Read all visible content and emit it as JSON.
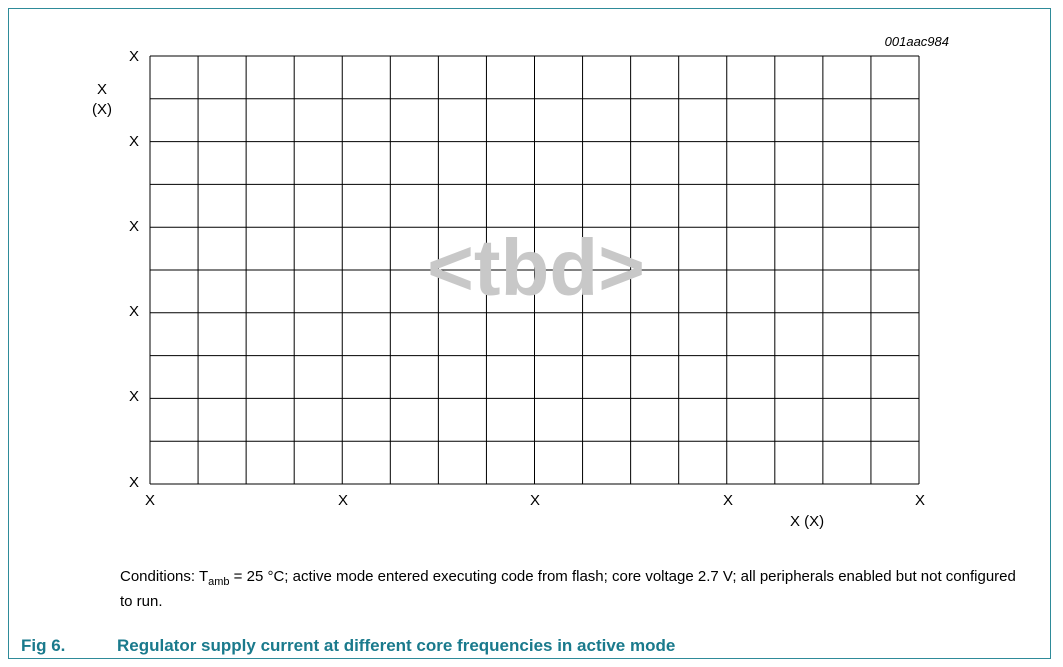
{
  "doc_id": "001aac984",
  "chart_data": {
    "type": "line",
    "watermark": "<tbd>",
    "y_label_lines": [
      "X",
      "(X)"
    ],
    "xlabel": "X (X)",
    "y_ticks": [
      "X",
      "X",
      "X",
      "X",
      "X",
      "X"
    ],
    "x_ticks": [
      "X",
      "X",
      "X",
      "X",
      "X",
      "X"
    ],
    "grid": true,
    "series": []
  },
  "caption": {
    "conditions_prefix": "Conditions: T",
    "conditions_sub": "amb",
    "conditions_rest": " = 25 °C; active mode entered executing code from flash; core voltage 2.7 V; all peripherals enabled but not configured to run.",
    "fig_number": "Fig 6.",
    "fig_title": "Regulator supply current at different core frequencies in active mode"
  },
  "colors": {
    "frame": "#2e8b99",
    "fig_title": "#1a7a8c",
    "watermark": "#c8c8c8",
    "grid": "#000000"
  }
}
